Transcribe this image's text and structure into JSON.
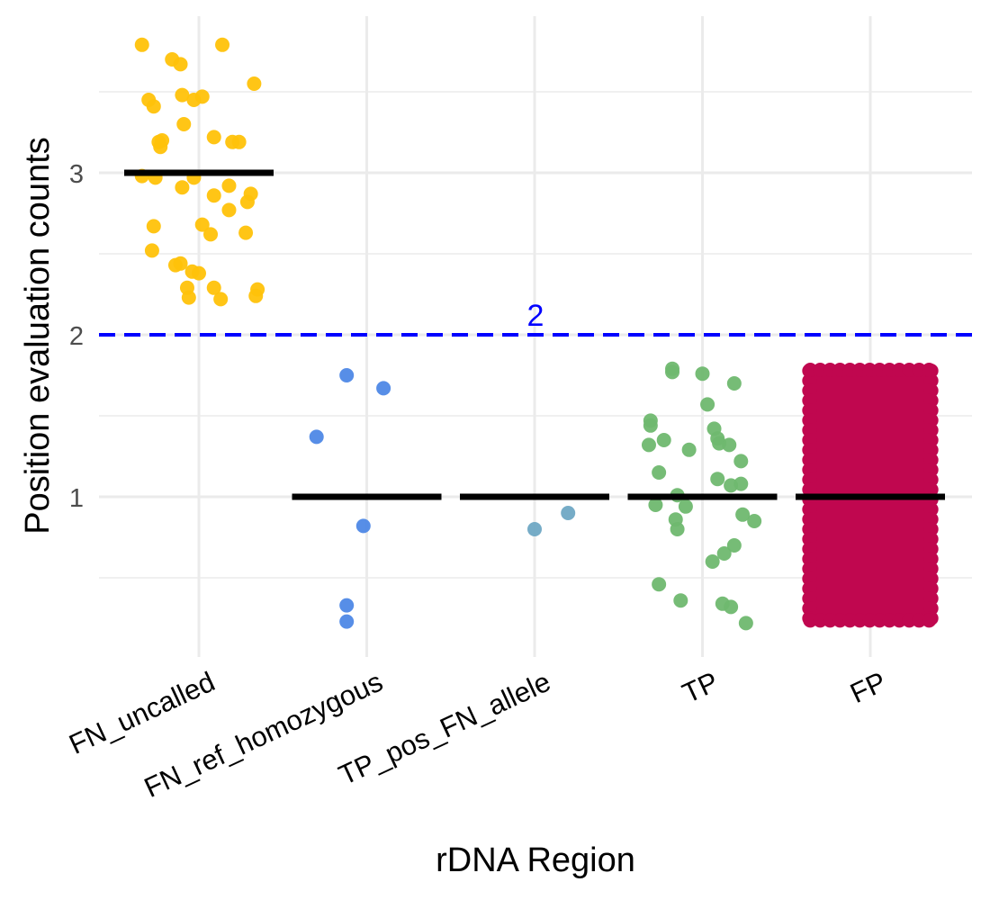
{
  "chart_data": {
    "type": "scatter",
    "subtype": "jitter strip plot with category median bars",
    "xlabel": "rDNA Region",
    "ylabel": "Position evaluation counts",
    "categories": [
      "FN_uncalled",
      "FN_ref_homozygous",
      "TP_pos_FN_allele",
      "TP",
      "FP"
    ],
    "ylim": [
      0.15,
      3.9
    ],
    "y_ticks": [
      1,
      2,
      3
    ],
    "grid": true,
    "legend": "none",
    "reference_line": {
      "y": 2,
      "label": "2",
      "color": "#0000ff",
      "style": "dashed"
    },
    "median_bar_color": "#000000",
    "series": [
      {
        "category": "FN_uncalled",
        "color": "#FFC20A",
        "median": 3,
        "points": [
          [
            -0.34,
            3.79
          ],
          [
            0.14,
            3.79
          ],
          [
            -0.16,
            3.7
          ],
          [
            -0.11,
            3.67
          ],
          [
            0.33,
            3.55
          ],
          [
            -0.3,
            3.45
          ],
          [
            -0.1,
            3.48
          ],
          [
            -0.03,
            3.45
          ],
          [
            0.02,
            3.47
          ],
          [
            -0.27,
            3.41
          ],
          [
            -0.09,
            3.3
          ],
          [
            0.09,
            3.22
          ],
          [
            -0.24,
            3.19
          ],
          [
            -0.22,
            3.2
          ],
          [
            -0.23,
            3.16
          ],
          [
            0.2,
            3.19
          ],
          [
            0.24,
            3.19
          ],
          [
            -0.34,
            2.98
          ],
          [
            -0.26,
            2.97
          ],
          [
            -0.1,
            2.91
          ],
          [
            -0.03,
            2.97
          ],
          [
            0.18,
            2.92
          ],
          [
            0.09,
            2.86
          ],
          [
            0.31,
            2.87
          ],
          [
            0.29,
            2.82
          ],
          [
            0.18,
            2.77
          ],
          [
            -0.27,
            2.67
          ],
          [
            0.02,
            2.68
          ],
          [
            0.07,
            2.62
          ],
          [
            0.28,
            2.63
          ],
          [
            -0.28,
            2.52
          ],
          [
            -0.14,
            2.43
          ],
          [
            -0.11,
            2.44
          ],
          [
            -0.04,
            2.39
          ],
          [
            0.0,
            2.38
          ],
          [
            -0.07,
            2.29
          ],
          [
            0.09,
            2.29
          ],
          [
            0.35,
            2.28
          ],
          [
            0.34,
            2.24
          ],
          [
            -0.06,
            2.23
          ],
          [
            0.13,
            2.22
          ]
        ]
      },
      {
        "category": "FN_ref_homozygous",
        "color": "#4E88E6",
        "median": 1,
        "points": [
          [
            -0.12,
            1.75
          ],
          [
            0.1,
            1.67
          ],
          [
            -0.3,
            1.37
          ],
          [
            -0.02,
            0.82
          ],
          [
            -0.12,
            0.33
          ],
          [
            -0.12,
            0.23
          ]
        ]
      },
      {
        "category": "TP_pos_FN_allele",
        "color": "#6FA8C4",
        "median": 1,
        "points": [
          [
            0.2,
            0.9
          ],
          [
            0.0,
            0.8
          ]
        ]
      },
      {
        "category": "TP",
        "color": "#6FB86F",
        "median": 1,
        "points": [
          [
            -0.18,
            1.79
          ],
          [
            -0.18,
            1.77
          ],
          [
            0.0,
            1.76
          ],
          [
            0.19,
            1.7
          ],
          [
            0.03,
            1.57
          ],
          [
            -0.31,
            1.47
          ],
          [
            -0.31,
            1.44
          ],
          [
            0.07,
            1.42
          ],
          [
            -0.23,
            1.35
          ],
          [
            0.09,
            1.36
          ],
          [
            0.1,
            1.33
          ],
          [
            0.16,
            1.32
          ],
          [
            -0.32,
            1.32
          ],
          [
            -0.08,
            1.29
          ],
          [
            0.23,
            1.22
          ],
          [
            -0.26,
            1.15
          ],
          [
            0.09,
            1.11
          ],
          [
            0.17,
            1.07
          ],
          [
            0.23,
            1.08
          ],
          [
            -0.15,
            1.01
          ],
          [
            -0.28,
            0.95
          ],
          [
            -0.1,
            0.94
          ],
          [
            0.24,
            0.89
          ],
          [
            0.31,
            0.85
          ],
          [
            -0.16,
            0.86
          ],
          [
            -0.15,
            0.8
          ],
          [
            0.19,
            0.7
          ],
          [
            0.13,
            0.65
          ],
          [
            0.06,
            0.6
          ],
          [
            -0.26,
            0.46
          ],
          [
            -0.13,
            0.36
          ],
          [
            0.12,
            0.34
          ],
          [
            0.17,
            0.32
          ],
          [
            0.26,
            0.22
          ]
        ]
      },
      {
        "category": "FP",
        "color": "#C0074F",
        "median": 1,
        "dense_band": {
          "x_range": [
            -0.38,
            0.38
          ],
          "y_range": [
            0.22,
            1.8
          ]
        }
      }
    ]
  }
}
